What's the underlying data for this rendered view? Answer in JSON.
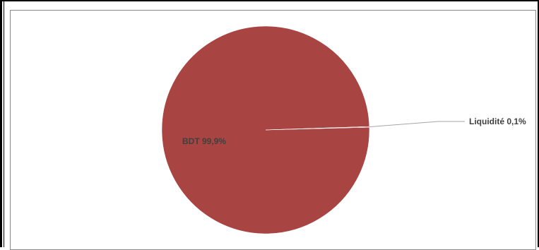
{
  "chart_data": {
    "type": "pie",
    "title": "",
    "slices": [
      {
        "name": "BDT",
        "value": 99.9,
        "label": "BDT 99,9%",
        "color": "#A84542"
      },
      {
        "name": "Liquidité",
        "value": 0.1,
        "label": "Liquidité 0,1%",
        "color": "#A84542"
      }
    ],
    "legend": "none"
  }
}
